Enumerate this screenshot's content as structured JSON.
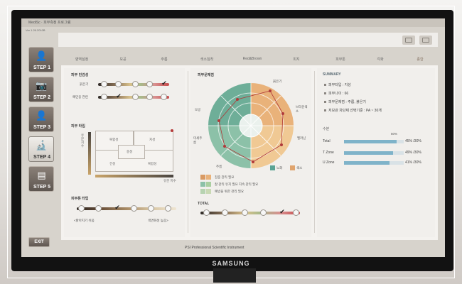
{
  "window": {
    "title": "MediSc · 피부측정 프로그램",
    "version": "Ver 1.26.2010B"
  },
  "steps": [
    {
      "label": "STEP 1",
      "icon": "person-plus-icon",
      "glyph": "👤",
      "active": false
    },
    {
      "label": "STEP 2",
      "icon": "camera-icon",
      "glyph": "📷",
      "active": false
    },
    {
      "label": "STEP 3",
      "icon": "person-icon",
      "glyph": "👤",
      "active": false
    },
    {
      "label": "STEP 4",
      "icon": "microscope-icon",
      "glyph": "🔬",
      "active": true
    },
    {
      "label": "STEP 5",
      "icon": "report-icon",
      "glyph": "▤",
      "active": false
    }
  ],
  "exit_label": "EXIT",
  "tabs": [
    "영역설정",
    "모공",
    "주름",
    "색소침착",
    "Red&Brown",
    "피지",
    "피부톤",
    "각화",
    "종합"
  ],
  "active_tab": 8,
  "left": {
    "sensitivity": {
      "title": "피부 민감성",
      "rows": [
        {
          "label": "붉은기",
          "checked_index": 4
        },
        {
          "label": "예민응 관련",
          "checked_index": 1
        }
      ]
    },
    "skin_type": {
      "title": "피부 타입",
      "cells": [
        "복합성",
        "지성",
        "중성",
        "건성",
        "복합성"
      ],
      "axis_v": "유분 지수",
      "axis_h": "유분 지수"
    },
    "skin_tone": {
      "title": "피부톤 타입",
      "checked_index": 2,
      "left_label": "<밝아지기 쉬움",
      "right_label": "색면화성 높음>"
    }
  },
  "center": {
    "title": "피부문제점",
    "radar_labels": [
      "붉은기",
      "브라운색소",
      "멜라닌",
      "모공",
      "주름",
      "미세주름"
    ],
    "legend": [
      {
        "label": "노화",
        "color": "#5aa394"
      },
      {
        "label": "색소",
        "color": "#e0a46d"
      }
    ],
    "notes": [
      {
        "text": "집중 관리 필요",
        "color": "#d99a63"
      },
      {
        "text": "잘 관리 유지 필요 지속 관리 필요",
        "color": "#8cc1a8"
      },
      {
        "text": "예방을 위한 관리 필요",
        "color": "#c9d9b4"
      }
    ],
    "total": {
      "title": "TOTAL",
      "checked_index": 4
    }
  },
  "right": {
    "summary": {
      "title": "SUMMARY",
      "lines": [
        "피부타입 : 지성",
        "피부나이 : 66",
        "피부문제점 : 주름, 붉은기",
        "저보관 차단제 선택기준 : PA ~ 30개"
      ]
    },
    "water": {
      "title": "수분",
      "scale_label": "50%",
      "rows": [
        {
          "label": "Total",
          "value_text": "45% /30%",
          "fill": 0.88
        },
        {
          "label": "T Zone",
          "value_text": "49% /30%",
          "fill": 0.82
        },
        {
          "label": "U Zone",
          "value_text": "41% /30%",
          "fill": 0.76
        }
      ]
    }
  },
  "footer_logo": "PSI Professional Scientific Instrument",
  "brand": "SAMSUNG"
}
